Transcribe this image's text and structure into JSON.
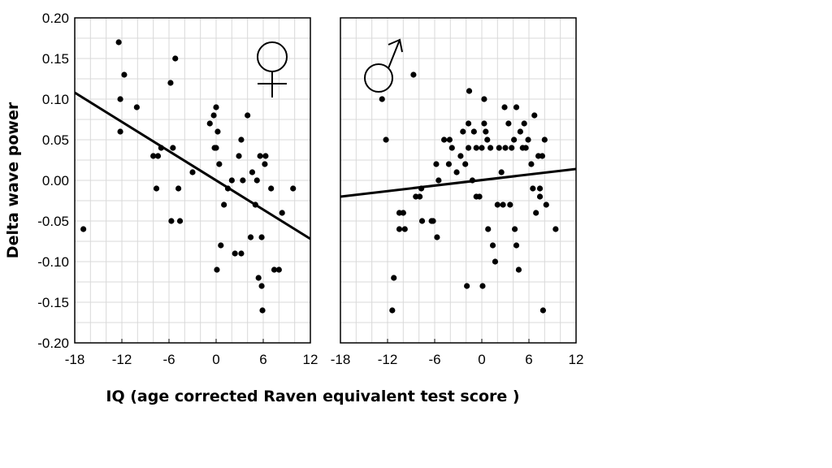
{
  "chart_data": {
    "type": "scatter",
    "xlabel": "IQ (age corrected Raven equivalent test score )",
    "ylabel": "Delta wave power",
    "xlim": [
      -18,
      12
    ],
    "ylim": [
      -0.2,
      0.2
    ],
    "x_ticks": [
      "-18",
      "-12",
      "-6",
      "0",
      "6",
      "12"
    ],
    "y_ticks": [
      "-0.20",
      "-0.15",
      "-0.10",
      "-0.05",
      "0.00",
      "0.05",
      "0.10",
      "0.15",
      "0.20"
    ],
    "grid": true,
    "panels": [
      {
        "symbol": "♀",
        "trend_line": [
          [
            -18,
            0.108
          ],
          [
            12,
            -0.072
          ]
        ],
        "points": [
          [
            -16.9,
            -0.06
          ],
          [
            -12.4,
            0.17
          ],
          [
            -12.2,
            0.1
          ],
          [
            -12.2,
            0.06
          ],
          [
            -11.7,
            0.13
          ],
          [
            -10.1,
            0.09
          ],
          [
            -8,
            0.03
          ],
          [
            -7.6,
            -0.01
          ],
          [
            -7.4,
            0.03
          ],
          [
            -7,
            0.04
          ],
          [
            -5.8,
            0.12
          ],
          [
            -5.7,
            -0.05
          ],
          [
            -5.5,
            0.04
          ],
          [
            -5.2,
            0.15
          ],
          [
            -4.8,
            -0.01
          ],
          [
            -4.6,
            -0.05
          ],
          [
            -3,
            0.01
          ],
          [
            -0.8,
            0.07
          ],
          [
            -0.3,
            0.08
          ],
          [
            -0.2,
            0.04
          ],
          [
            0,
            0.09
          ],
          [
            0,
            0.04
          ],
          [
            0.2,
            0.06
          ],
          [
            0.1,
            -0.11
          ],
          [
            0.4,
            0.02
          ],
          [
            0.6,
            -0.08
          ],
          [
            1,
            -0.03
          ],
          [
            1.5,
            -0.01
          ],
          [
            2,
            0
          ],
          [
            2.4,
            -0.09
          ],
          [
            2.9,
            0.03
          ],
          [
            3.2,
            0.05
          ],
          [
            3.2,
            -0.09
          ],
          [
            3.4,
            0
          ],
          [
            4,
            0.08
          ],
          [
            4.4,
            -0.07
          ],
          [
            4.6,
            0.01
          ],
          [
            5,
            -0.03
          ],
          [
            5.2,
            0
          ],
          [
            5.4,
            -0.12
          ],
          [
            5.6,
            0.03
          ],
          [
            5.8,
            -0.07
          ],
          [
            5.8,
            -0.13
          ],
          [
            5.9,
            -0.16
          ],
          [
            6.2,
            0.02
          ],
          [
            6.3,
            0.03
          ],
          [
            7,
            -0.01
          ],
          [
            7.4,
            -0.11
          ],
          [
            8,
            -0.11
          ],
          [
            8.4,
            -0.04
          ],
          [
            9.8,
            -0.01
          ]
        ]
      },
      {
        "symbol": "♂",
        "trend_line": [
          [
            -18,
            -0.02
          ],
          [
            12,
            0.014
          ]
        ],
        "points": [
          [
            -12.7,
            0.1
          ],
          [
            -12.2,
            0.05
          ],
          [
            -11.4,
            -0.16
          ],
          [
            -11.2,
            -0.12
          ],
          [
            -10.5,
            -0.04
          ],
          [
            -10.5,
            -0.06
          ],
          [
            -10,
            -0.04
          ],
          [
            -9.8,
            -0.06
          ],
          [
            -8.7,
            0.13
          ],
          [
            -8.4,
            -0.02
          ],
          [
            -7.9,
            -0.02
          ],
          [
            -7.7,
            -0.01
          ],
          [
            -7.6,
            -0.05
          ],
          [
            -6.4,
            -0.05
          ],
          [
            -6.2,
            -0.05
          ],
          [
            -5.8,
            0.02
          ],
          [
            -5.7,
            -0.07
          ],
          [
            -5.5,
            0
          ],
          [
            -4.8,
            0.05
          ],
          [
            -4.2,
            0.02
          ],
          [
            -4.1,
            0.05
          ],
          [
            -3.8,
            0.04
          ],
          [
            -3.2,
            0.01
          ],
          [
            -2.7,
            0.03
          ],
          [
            -2.4,
            0.06
          ],
          [
            -2.1,
            0.02
          ],
          [
            -1.9,
            -0.13
          ],
          [
            -1.7,
            0.04
          ],
          [
            -1.7,
            0.07
          ],
          [
            -1.6,
            0.11
          ],
          [
            -1.2,
            0
          ],
          [
            -1,
            0.06
          ],
          [
            -0.7,
            0.04
          ],
          [
            -0.7,
            -0.02
          ],
          [
            -0.3,
            -0.02
          ],
          [
            0,
            0.04
          ],
          [
            0.1,
            -0.13
          ],
          [
            0.3,
            0.07
          ],
          [
            0.3,
            0.1
          ],
          [
            0.5,
            0.06
          ],
          [
            0.7,
            0.05
          ],
          [
            0.8,
            -0.06
          ],
          [
            1.1,
            0.04
          ],
          [
            1.4,
            -0.08
          ],
          [
            1.7,
            -0.1
          ],
          [
            2,
            -0.03
          ],
          [
            2.2,
            0.04
          ],
          [
            2.5,
            0.01
          ],
          [
            2.7,
            -0.03
          ],
          [
            2.9,
            0.09
          ],
          [
            3,
            0.04
          ],
          [
            3.4,
            0.07
          ],
          [
            3.6,
            -0.03
          ],
          [
            3.8,
            0.04
          ],
          [
            4.1,
            0.05
          ],
          [
            4.2,
            -0.06
          ],
          [
            4.4,
            0.09
          ],
          [
            4.4,
            -0.08
          ],
          [
            4.7,
            -0.11
          ],
          [
            4.9,
            0.06
          ],
          [
            5.2,
            0.04
          ],
          [
            5.4,
            0.07
          ],
          [
            5.6,
            0.04
          ],
          [
            5.9,
            0.05
          ],
          [
            6.3,
            0.02
          ],
          [
            6.5,
            -0.01
          ],
          [
            6.7,
            0.08
          ],
          [
            6.9,
            -0.04
          ],
          [
            7.2,
            0.03
          ],
          [
            7.4,
            -0.02
          ],
          [
            7.4,
            -0.01
          ],
          [
            7.7,
            0.03
          ],
          [
            7.8,
            -0.16
          ],
          [
            8,
            0.05
          ],
          [
            8.2,
            -0.03
          ],
          [
            9.4,
            -0.06
          ]
        ]
      }
    ]
  }
}
